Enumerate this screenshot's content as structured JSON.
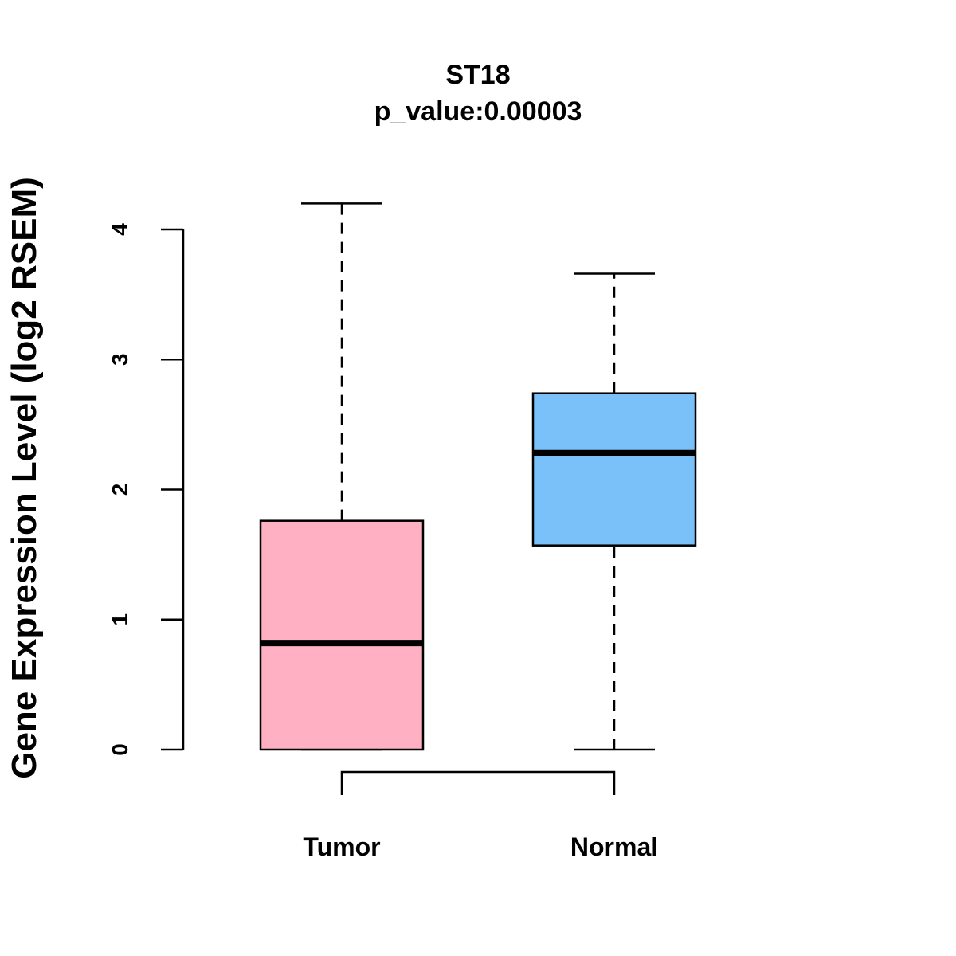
{
  "chart_data": {
    "type": "box",
    "title": "ST18",
    "subtitle": "p_value:0.00003",
    "xlabel": "",
    "ylabel": "Gene Expression Level (log2 RSEM)",
    "ylim": [
      0,
      4.2
    ],
    "yticks": [
      0,
      1,
      2,
      3,
      4
    ],
    "ytick_labels": [
      "0",
      "1",
      "2",
      "3",
      "4"
    ],
    "categories": [
      "Tumor",
      "Normal"
    ],
    "boxes": [
      {
        "name": "Tumor",
        "min": 0.0,
        "q1": 0.0,
        "median": 0.82,
        "q3": 1.76,
        "max": 4.2,
        "color": "#FFB0C2"
      },
      {
        "name": "Normal",
        "min": 0.0,
        "q1": 1.57,
        "median": 2.28,
        "q3": 2.74,
        "max": 3.66,
        "color": "#79C1F8"
      }
    ],
    "comparison_bracket": {
      "from": "Tumor",
      "to": "Normal"
    },
    "grid": false
  }
}
